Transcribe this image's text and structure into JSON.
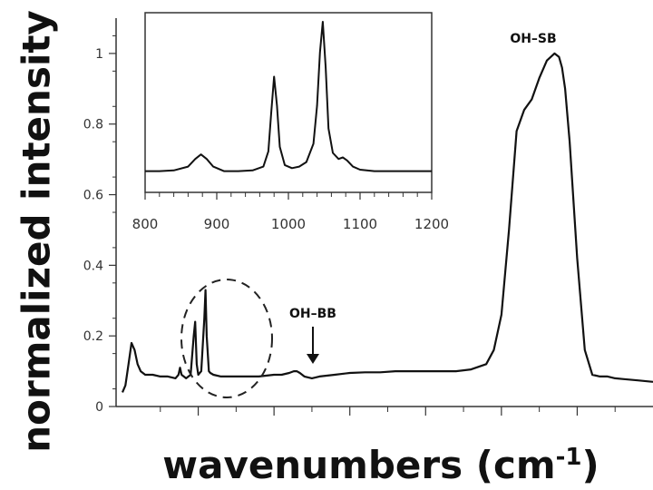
{
  "chart_data": [
    {
      "type": "line",
      "panel": "main",
      "ylabel": "normalized intensity",
      "xlabel_main": "wavenumbers (cm",
      "xlabel_sup": "-1",
      "xlabel_end": ")",
      "ylim": [
        0,
        1.1
      ],
      "yticks": [
        0,
        0.2,
        0.4,
        0.6,
        0.8,
        1
      ],
      "ytick_labels": [
        "0",
        "0.2",
        "0.4",
        "0.6",
        "0.8",
        "1"
      ],
      "xlim": [
        500,
        4000
      ],
      "xticks": [
        1000,
        1500,
        2000,
        2500,
        3000,
        3500
      ],
      "annotations": [
        {
          "text": "OH–SB",
          "x": 3400,
          "y": 1.0
        },
        {
          "text": "OH–BB",
          "x": 1650,
          "y": 0.1
        }
      ],
      "series": [
        {
          "x": [
            500,
            520,
            540,
            560,
            580,
            600,
            620,
            650,
            700,
            750,
            800,
            850,
            870,
            880,
            890,
            920,
            950,
            970,
            980,
            990,
            1000,
            1020,
            1040,
            1048,
            1056,
            1070,
            1080,
            1100,
            1150,
            1200,
            1300,
            1400,
            1500,
            1550,
            1600,
            1630,
            1650,
            1670,
            1700,
            1750,
            1800,
            1900,
            2000,
            2100,
            2200,
            2300,
            2400,
            2500,
            2600,
            2700,
            2800,
            2900,
            2950,
            3000,
            3050,
            3100,
            3150,
            3200,
            3250,
            3300,
            3350,
            3380,
            3400,
            3420,
            3450,
            3500,
            3550,
            3600,
            3650,
            3700,
            3750,
            3800,
            3900,
            4000
          ],
          "y": [
            0.04,
            0.06,
            0.12,
            0.18,
            0.16,
            0.12,
            0.1,
            0.09,
            0.09,
            0.085,
            0.085,
            0.08,
            0.09,
            0.11,
            0.09,
            0.08,
            0.09,
            0.2,
            0.24,
            0.12,
            0.09,
            0.1,
            0.25,
            0.33,
            0.2,
            0.1,
            0.095,
            0.09,
            0.085,
            0.085,
            0.085,
            0.085,
            0.09,
            0.09,
            0.095,
            0.1,
            0.1,
            0.095,
            0.085,
            0.08,
            0.085,
            0.09,
            0.095,
            0.097,
            0.097,
            0.1,
            0.1,
            0.1,
            0.1,
            0.1,
            0.105,
            0.12,
            0.16,
            0.26,
            0.5,
            0.78,
            0.84,
            0.87,
            0.93,
            0.98,
            1.0,
            0.99,
            0.96,
            0.9,
            0.75,
            0.42,
            0.16,
            0.09,
            0.085,
            0.085,
            0.08,
            0.078,
            0.074,
            0.07
          ]
        }
      ]
    },
    {
      "type": "line",
      "panel": "inset",
      "xlim": [
        800,
        1200
      ],
      "xticks": [
        800,
        900,
        1000,
        1100,
        1200
      ],
      "xtick_labels": [
        "800",
        "900",
        "1000",
        "1100",
        "1200"
      ],
      "series": [
        {
          "x": [
            800,
            820,
            840,
            860,
            870,
            878,
            886,
            895,
            910,
            930,
            950,
            965,
            972,
            976,
            980,
            984,
            988,
            995,
            1005,
            1015,
            1025,
            1035,
            1040,
            1044,
            1048,
            1052,
            1056,
            1062,
            1070,
            1076,
            1082,
            1090,
            1100,
            1120,
            1150,
            1200
          ],
          "y": [
            0.02,
            0.02,
            0.025,
            0.05,
            0.1,
            0.13,
            0.1,
            0.05,
            0.02,
            0.02,
            0.025,
            0.05,
            0.15,
            0.4,
            0.64,
            0.45,
            0.18,
            0.06,
            0.04,
            0.05,
            0.08,
            0.2,
            0.45,
            0.8,
            1.0,
            0.7,
            0.3,
            0.14,
            0.1,
            0.11,
            0.09,
            0.05,
            0.03,
            0.02,
            0.02,
            0.02
          ]
        }
      ]
    }
  ]
}
